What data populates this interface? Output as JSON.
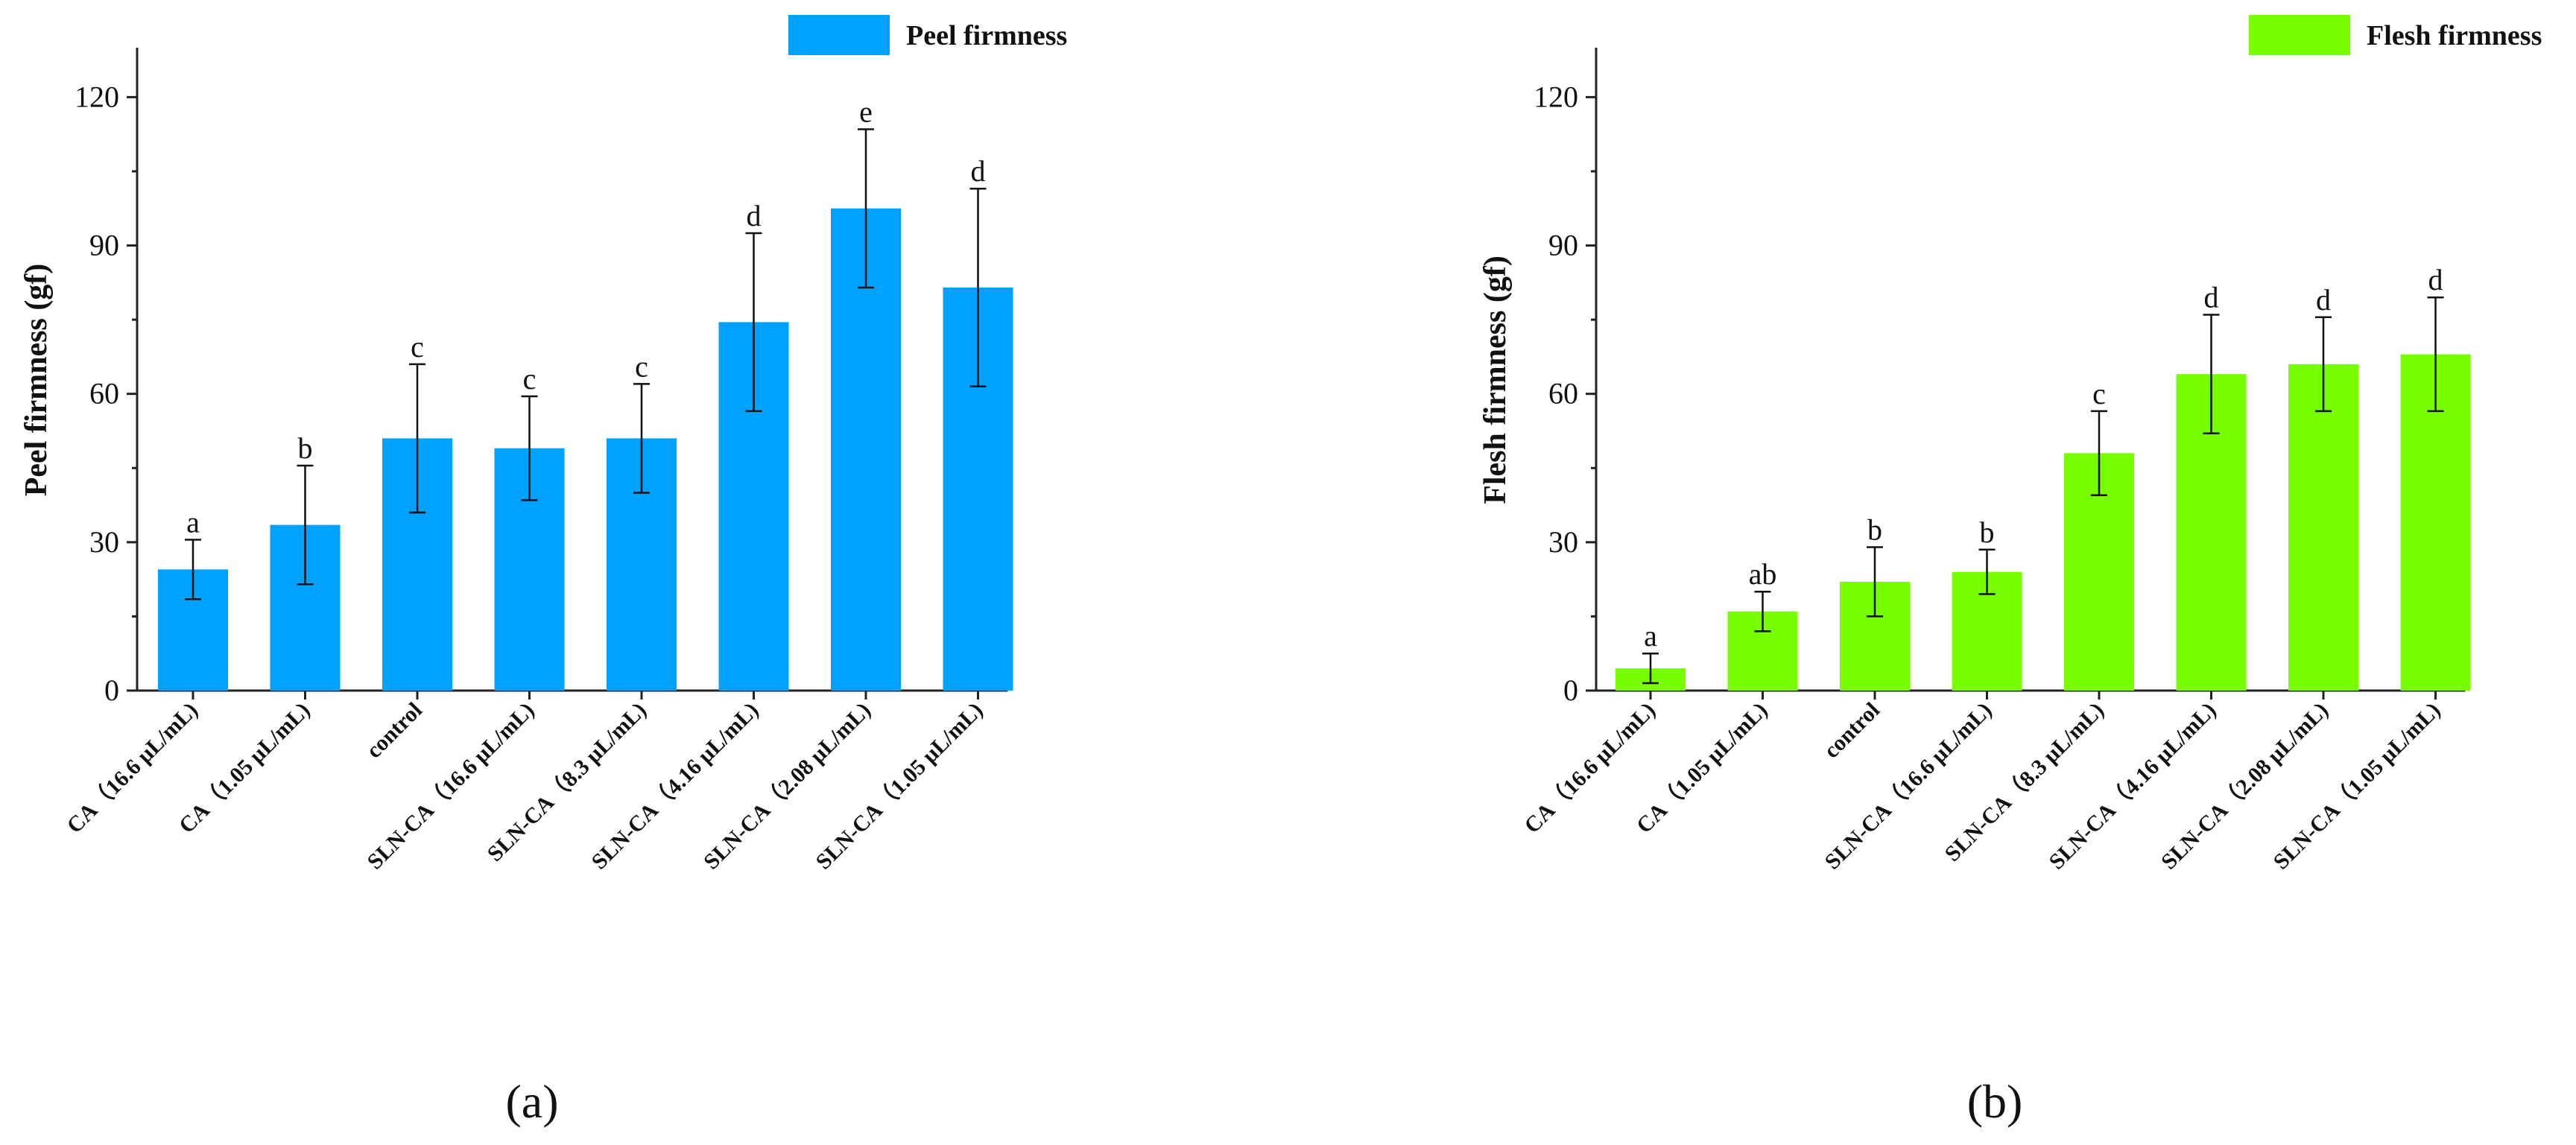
{
  "chart_data": [
    {
      "type": "bar",
      "panel_label": "(a)",
      "legend": "Peel firmness",
      "ylabel": "Peel firmness (gf)",
      "xlabel": "",
      "ylim": [
        0,
        130
      ],
      "yticks": [
        0,
        30,
        60,
        90,
        120
      ],
      "color": "#00a2ff",
      "categories": [
        "CA（16.6 μL/mL)",
        "CA（1.05 μL/mL)",
        "control",
        "SLN-CA（16.6 μL/mL)",
        "SLN-CA（8.3 μL/mL)",
        "SLN-CA（4.16 μL/mL)",
        "SLN-CA（2.08 μL/mL)",
        "SLN-CA（1.05 μL/mL)"
      ],
      "values": [
        24.5,
        33.5,
        51,
        49,
        51,
        74.5,
        97.5,
        81.5
      ],
      "errors": [
        6,
        12,
        15,
        10.5,
        11,
        18,
        16,
        20
      ],
      "significance": [
        "a",
        "b",
        "c",
        "c",
        "c",
        "d",
        "e",
        "d"
      ]
    },
    {
      "type": "bar",
      "panel_label": "(b)",
      "legend": "Flesh firmness",
      "ylabel": "Flesh firmness (gf)",
      "xlabel": "",
      "ylim": [
        0,
        130
      ],
      "yticks": [
        0,
        30,
        60,
        90,
        120
      ],
      "color": "#77ff00",
      "categories": [
        "CA（16.6 μL/mL)",
        "CA（1.05 μL/mL)",
        "control",
        "SLN-CA（16.6 μL/mL)",
        "SLN-CA（8.3 μL/mL)",
        "SLN-CA（4.16 μL/mL)",
        "SLN-CA（2.08 μL/mL)",
        "SLN-CA（1.05 μL/mL)"
      ],
      "values": [
        4.5,
        16,
        22,
        24,
        48,
        64,
        66,
        68
      ],
      "errors": [
        3,
        4,
        7,
        4.5,
        8.5,
        12,
        9.5,
        11.5
      ],
      "significance": [
        "a",
        "ab",
        "b",
        "b",
        "c",
        "d",
        "d",
        "d"
      ]
    }
  ]
}
